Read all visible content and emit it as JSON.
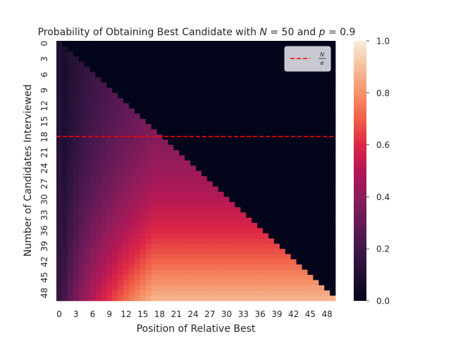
{
  "chart_data": {
    "type": "heatmap",
    "title": "Probability of Obtaining Best Candidate with N = 50 and p = 0.9",
    "title_parts": {
      "prefix": "Probability of Obtaining Best Candidate with ",
      "n_symbol": "N",
      "n_value": " = 50",
      "joiner": " and ",
      "p_symbol": "p",
      "p_value": " = 0.9"
    },
    "xlabel": "Position of Relative Best",
    "ylabel": "Number of Candidates Interviewed",
    "n": 50,
    "p": 0.9,
    "x_ticks": [
      0,
      3,
      6,
      9,
      12,
      15,
      18,
      21,
      24,
      27,
      30,
      33,
      36,
      39,
      42,
      45,
      48
    ],
    "y_ticks": [
      0,
      3,
      6,
      9,
      12,
      15,
      18,
      21,
      24,
      27,
      30,
      33,
      36,
      39,
      42,
      45,
      48
    ],
    "value_range": [
      0.0,
      1.0
    ],
    "colorbar_ticks": [
      0.0,
      0.2,
      0.4,
      0.6,
      0.8,
      1.0
    ],
    "colorbar_tick_labels": [
      "0.0",
      "0.2",
      "0.4",
      "0.6",
      "0.8",
      "1.0"
    ],
    "colormap": "rocket",
    "cells": "value at row r (candidates interviewed) and column c (position of relative best) for c <= r; cells with c > r have value 0",
    "reference_line": {
      "label_top": "N",
      "label_bottom": "e",
      "y": 18.39,
      "color": "#ff0000",
      "style": "dashed"
    },
    "legend_position": "upper right",
    "grid": false
  }
}
